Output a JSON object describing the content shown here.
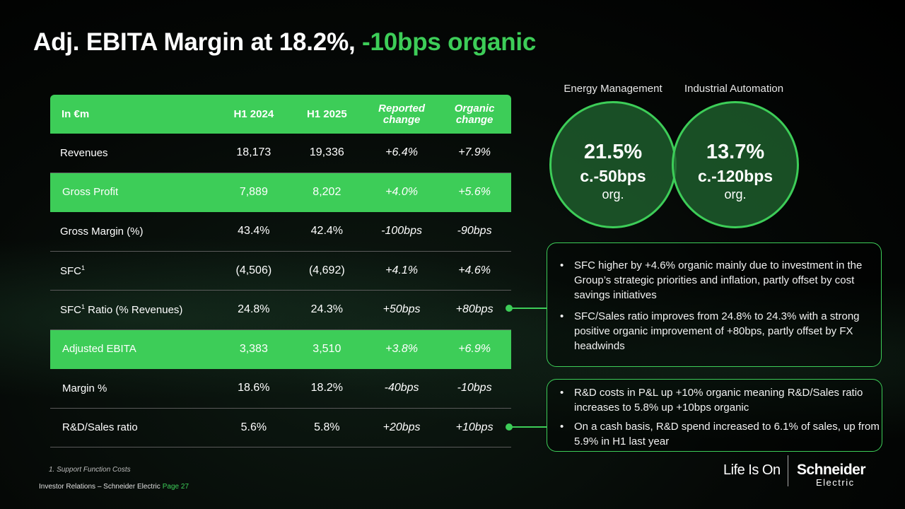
{
  "title": {
    "main": "Adj. EBITA Margin at 18.2%,",
    "highlight": "-10bps organic"
  },
  "table": {
    "headers": [
      "In €m",
      "H1 2024",
      "H1 2025",
      "Reported change",
      "Organic change"
    ],
    "rows": [
      {
        "label": "Revenues",
        "h1_2024": "18,173",
        "h1_2025": "19,336",
        "reported": "+6.4%",
        "organic": "+7.9%"
      },
      {
        "label": "Gross Profit",
        "h1_2024": "7,889",
        "h1_2025": "8,202",
        "reported": "+4.0%",
        "organic": "+5.6%"
      },
      {
        "label": "Gross Margin (%)",
        "h1_2024": "43.4%",
        "h1_2025": "42.4%",
        "reported": "-100bps",
        "organic": "-90bps"
      },
      {
        "label": "SFC",
        "sup": "1",
        "h1_2024": "(4,506)",
        "h1_2025": "(4,692)",
        "reported": "+4.1%",
        "organic": "+4.6%"
      },
      {
        "label": "SFC",
        "sup": "1",
        "label_suffix": " Ratio (% Revenues)",
        "h1_2024": "24.8%",
        "h1_2025": "24.3%",
        "reported": "+50bps",
        "organic": "+80bps"
      },
      {
        "label": "Adjusted EBITA",
        "h1_2024": "3,383",
        "h1_2025": "3,510",
        "reported": "+3.8%",
        "organic": "+6.9%"
      },
      {
        "label": "Margin %",
        "h1_2024": "18.6%",
        "h1_2025": "18.2%",
        "reported": "-40bps",
        "organic": "-10bps"
      },
      {
        "label": "R&D/Sales ratio",
        "h1_2024": "5.6%",
        "h1_2025": "5.8%",
        "reported": "+20bps",
        "organic": "+10bps"
      }
    ]
  },
  "segments": [
    {
      "name": "Energy Management",
      "margin": "21.5%",
      "change": "c.-50bps",
      "note": "org."
    },
    {
      "name": "Industrial Automation",
      "margin": "13.7%",
      "change": "c.-120bps",
      "note": "org."
    }
  ],
  "callouts": {
    "sfc": [
      "SFC higher by +4.6% organic mainly due to investment in the Group’s strategic priorities and inflation, partly offset by cost savings initiatives",
      "SFC/Sales ratio improves from 24.8% to 24.3% with a strong positive organic improvement of +80bps, partly offset by FX headwinds"
    ],
    "rd": [
      "R&D costs in P&L up +10% organic meaning R&D/Sales ratio increases to 5.8% up +10bps organic",
      "On a cash basis, R&D spend increased to 6.1% of sales, up from 5.9% in H1 last year"
    ]
  },
  "footnote": "1. Support Function Costs",
  "footer": {
    "text": "Investor Relations – Schneider Electric",
    "page": "Page 27"
  },
  "brand": {
    "tagline": "Life Is On",
    "logo_top": "Schneider",
    "logo_bottom": "Electric"
  },
  "colors": {
    "accent": "#3dcd58",
    "background": "#000000"
  }
}
